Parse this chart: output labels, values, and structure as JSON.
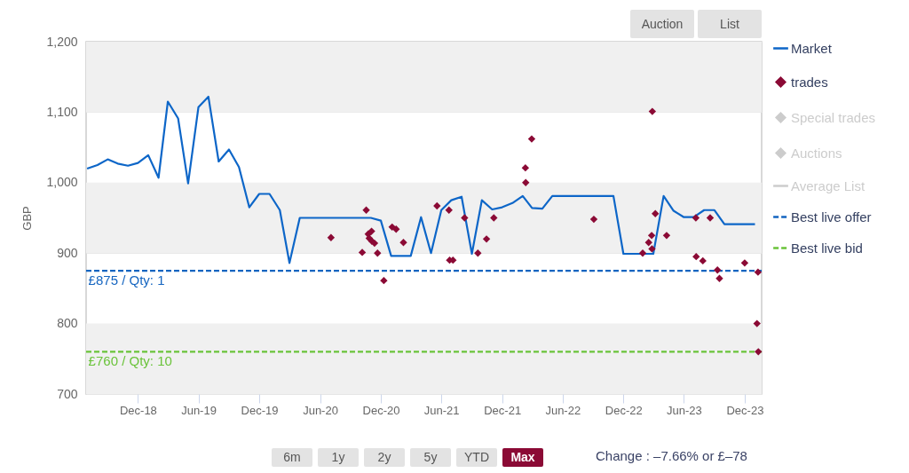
{
  "chart_data": {
    "type": "line",
    "ylabel": "GBP",
    "xlim": [
      "2018-06-28",
      "2024-01-21"
    ],
    "xticks": [
      {
        "value": "2018-12",
        "label": "Dec-18"
      },
      {
        "value": "2019-06",
        "label": "Jun-19"
      },
      {
        "value": "2019-12",
        "label": "Dec-19"
      },
      {
        "value": "2020-06",
        "label": "Jun-20"
      },
      {
        "value": "2020-12",
        "label": "Dec-20"
      },
      {
        "value": "2021-06",
        "label": "Jun-21"
      },
      {
        "value": "2021-12",
        "label": "Dec-21"
      },
      {
        "value": "2022-06",
        "label": "Jun-22"
      },
      {
        "value": "2022-12",
        "label": "Dec-22"
      },
      {
        "value": "2023-06",
        "label": "Jun-23"
      },
      {
        "value": "2023-12",
        "label": "Dec-23"
      }
    ],
    "ylim": [
      700,
      1200
    ],
    "yticks": [
      700,
      800,
      900,
      {
        "value": 1000,
        "label": "1,000"
      },
      {
        "value": 1100,
        "label": "1,100"
      },
      {
        "value": 1200,
        "label": "1,200"
      }
    ],
    "grid": "y",
    "legend": "right",
    "bands": [
      {
        "axis": "y",
        "from": 700,
        "to": 800,
        "color": "#f0f0f0"
      },
      {
        "axis": "y",
        "from": 900,
        "to": 1000,
        "color": "#f0f0f0"
      },
      {
        "axis": "y",
        "from": 1100,
        "to": 1200,
        "color": "#f0f0f0"
      }
    ],
    "series": [
      {
        "name": "Market",
        "color": "#0d66c8",
        "line_style": "solid",
        "x": [
          "2018-07",
          "2018-08",
          "2018-09",
          "2018-10",
          "2018-11",
          "2018-12",
          "2019-01",
          "2019-02",
          "2019-03",
          "2019-04",
          "2019-05",
          "2019-06",
          "2019-07",
          "2019-08",
          "2019-09",
          "2019-10",
          "2019-11",
          "2019-12",
          "2020-01",
          "2020-02",
          "2020-03",
          "2020-04",
          "2020-11",
          "2020-12",
          "2021-01",
          "2021-03",
          "2021-04",
          "2021-05",
          "2021-06",
          "2021-07",
          "2021-08",
          "2021-09",
          "2021-10",
          "2021-11",
          "2021-12",
          "2022-01",
          "2022-02",
          "2022-03",
          "2022-04",
          "2022-05",
          "2022-11",
          "2022-12",
          "2023-03",
          "2023-04",
          "2023-05",
          "2023-06",
          "2023-07",
          "2023-08",
          "2023-09",
          "2023-10",
          "2024-01"
        ],
        "values": [
          1020,
          1025,
          1033,
          1027,
          1024,
          1028,
          1039,
          1007,
          1115,
          1091,
          999,
          1107,
          1122,
          1030,
          1047,
          1022,
          965,
          984,
          984,
          961,
          886,
          950,
          950,
          946,
          896,
          896,
          951,
          900,
          961,
          975,
          980,
          899,
          975,
          962,
          965,
          971,
          981,
          964,
          963,
          981,
          981,
          899,
          899,
          981,
          960,
          951,
          951,
          961,
          961,
          941,
          941
        ]
      },
      {
        "name": "trades",
        "type": "scatter",
        "marker": "diamond",
        "color": "#8b0a35",
        "x": [
          "2020-07-04",
          "2020-10-18",
          "2020-10-24",
          "2020-11-03",
          "2020-10-27",
          "2020-11-04",
          "2020-11-12",
          "2020-10-06",
          "2020-11-21",
          "2020-12-10",
          "2021-01-04",
          "2021-01-16",
          "2021-02-07",
          "2021-05-19",
          "2021-06-24",
          "2021-06-26",
          "2021-07-06",
          "2021-08-10",
          "2021-09-19",
          "2021-10-15",
          "2021-11-06",
          "2022-02-09",
          "2022-02-10",
          "2022-02-28",
          "2022-09-03",
          "2023-01-28",
          "2023-02-15",
          "2023-02-24",
          "2023-02-25",
          "2023-02-26",
          "2023-03-07",
          "2023-04-10",
          "2023-07-07",
          "2023-07-08",
          "2023-07-28",
          "2023-08-19",
          "2023-09-10",
          "2023-09-16",
          "2023-12-01",
          "2024-01-10",
          "2024-01-07",
          "2024-01-11"
        ],
        "values": [
          922,
          961,
          927,
          931,
          921,
          917,
          914,
          901,
          900,
          861,
          937,
          934,
          915,
          967,
          961,
          890,
          890,
          950,
          900,
          920,
          950,
          1021,
          1000,
          1062,
          948,
          900,
          915,
          925,
          906,
          1101,
          956,
          925,
          950,
          895,
          889,
          950,
          876,
          864,
          886,
          873,
          800,
          760
        ]
      },
      {
        "name": "Special trades",
        "type": "scatter",
        "marker": "diamond",
        "color": "#cccccc"
      },
      {
        "name": "Auctions",
        "type": "scatter",
        "marker": "diamond",
        "color": "#cccccc"
      },
      {
        "name": "Average List",
        "type": "line",
        "color": "#cccccc",
        "line_style": "solid"
      },
      {
        "name": "Best live offer",
        "color": "#1565c0",
        "line_style": "dashed",
        "x": [
          "2018-06-28",
          "2024-01-21"
        ],
        "values": [
          875,
          875
        ]
      },
      {
        "name": "Best live bid",
        "color": "#6ac33a",
        "line_style": "dashed",
        "x": [
          "2018-06-28",
          "2024-01-21"
        ],
        "values": [
          760,
          760
        ]
      }
    ],
    "annotations": [
      {
        "text": "£875 / Qty: 1",
        "x": "2018-07-05",
        "y": 875
      },
      {
        "text": "£760 / Qty: 10",
        "x": "2018-07-05",
        "y": 760
      },
      "Auction",
      "List",
      "6m",
      "1y",
      "2y",
      "5y",
      "YTD",
      "Max",
      "Change : –7.66% or £–78"
    ]
  }
}
